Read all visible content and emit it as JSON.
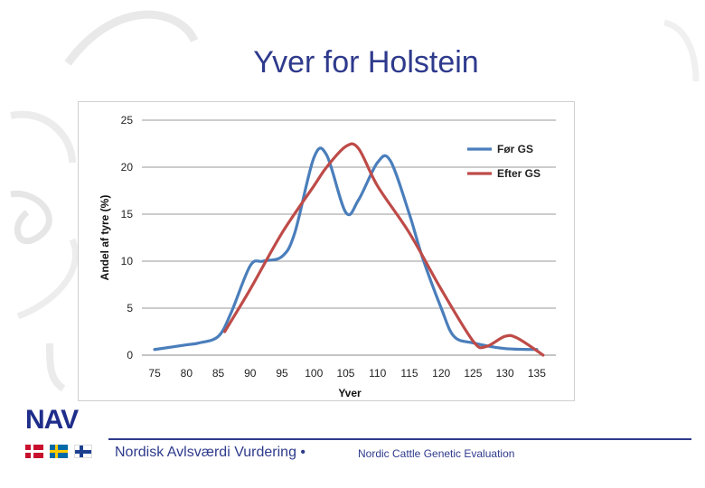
{
  "slide": {
    "title": "Yver for Holstein"
  },
  "footer": {
    "logo": "NAV",
    "left_text": "Nordisk Avlsværdi Vurdering •",
    "right_text": "Nordic Cattle Genetic Evaluation",
    "flags": [
      "denmark-flag",
      "sweden-flag",
      "finland-flag"
    ]
  },
  "colors": {
    "title": "#2e3a8c",
    "series_before": "#4a7ebb",
    "series_after": "#be4b48",
    "grid": "#9a9a9a"
  },
  "chart_data": {
    "type": "line",
    "title": "",
    "xlabel": "Yver",
    "ylabel": "Andel af tyre (%)",
    "xlim": [
      73,
      138
    ],
    "ylim": [
      0,
      25
    ],
    "x_ticks": [
      "75",
      "80",
      "85",
      "90",
      "95",
      "100",
      "105",
      "110",
      "115",
      "120",
      "125",
      "130",
      "135"
    ],
    "y_ticks": [
      "0",
      "5",
      "10",
      "15",
      "20",
      "25"
    ],
    "grid": true,
    "legend_position": "top-right",
    "series": [
      {
        "name": "Før GS",
        "color": "#4a7ebb",
        "x": [
          75,
          80,
          82,
          85,
          87,
          90,
          92,
          95,
          97,
          100,
          102,
          105,
          107,
          110,
          112,
          115,
          117,
          120,
          122,
          125,
          130,
          135
        ],
        "y": [
          0.6,
          1.1,
          1.3,
          2.0,
          4.5,
          9.5,
          10.0,
          10.5,
          13.0,
          21.0,
          21.3,
          15.2,
          16.5,
          20.5,
          20.7,
          15.0,
          10.5,
          5.0,
          2.0,
          1.3,
          0.7,
          0.6
        ]
      },
      {
        "name": "Efter GS",
        "color": "#be4b48",
        "x": [
          86,
          90,
          95,
          100,
          102,
          105,
          107,
          110,
          115,
          120,
          125,
          127,
          130,
          132,
          136
        ],
        "y": [
          2.5,
          7.0,
          13.0,
          18.0,
          20.0,
          22.2,
          22.0,
          18.0,
          13.0,
          7.0,
          1.5,
          0.9,
          2.0,
          1.8,
          0.0
        ]
      }
    ]
  }
}
